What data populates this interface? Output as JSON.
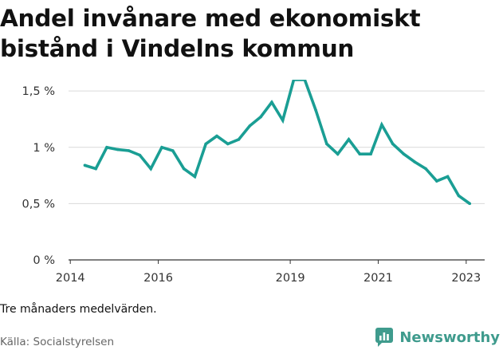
{
  "title": "Andel invånare med ekonomiskt bistånd i Vindelns kommun",
  "note": "Tre månaders medelvärden.",
  "source": "Källa: Socialstyrelsen",
  "brand": "Newsworthy",
  "colors": {
    "line": "#1a9e94",
    "grid": "#d9d9d9",
    "axis": "#333333",
    "brand": "#3f9b8d"
  },
  "chart_data": {
    "type": "line",
    "title": "Andel invånare med ekonomiskt bistånd i Vindelns kommun",
    "xlabel": "",
    "ylabel": "",
    "x_ticks": [
      {
        "value": 2014,
        "label": "2014"
      },
      {
        "value": 2016,
        "label": "2016"
      },
      {
        "value": 2019,
        "label": "2019"
      },
      {
        "value": 2021,
        "label": "2021"
      },
      {
        "value": 2023,
        "label": "2023"
      }
    ],
    "y_ticks": [
      {
        "value": 0,
        "label": "0 %"
      },
      {
        "value": 0.5,
        "label": "0,5 %"
      },
      {
        "value": 1,
        "label": "1 %"
      },
      {
        "value": 1.5,
        "label": "1,5 %"
      }
    ],
    "xlim": [
      2013.96,
      2023.42
    ],
    "ylim": [
      0,
      1.6
    ],
    "grid": true,
    "legend": "none",
    "series": [
      {
        "x": [
          2014.33,
          2014.58,
          2014.83,
          2015.08,
          2015.33,
          2015.58,
          2015.83,
          2016.08,
          2016.33,
          2016.58,
          2016.83,
          2017.08,
          2017.33,
          2017.58,
          2017.83,
          2018.08,
          2018.33,
          2018.58,
          2018.83,
          2019.08,
          2019.33,
          2019.58,
          2019.83,
          2020.08,
          2020.33,
          2020.58,
          2020.83,
          2021.08,
          2021.33,
          2021.58,
          2021.83,
          2022.08,
          2022.33,
          2022.58,
          2022.83,
          2023.08
        ],
        "y": [
          0.84,
          0.81,
          1.0,
          0.98,
          0.97,
          0.93,
          0.81,
          1.0,
          0.97,
          0.81,
          0.74,
          1.03,
          1.1,
          1.03,
          1.07,
          1.19,
          1.27,
          1.4,
          1.24,
          1.6,
          1.6,
          1.33,
          1.03,
          0.94,
          1.07,
          0.94,
          0.94,
          1.2,
          1.03,
          0.94,
          0.87,
          0.81,
          0.7,
          0.74,
          0.57,
          0.5
        ]
      }
    ]
  }
}
